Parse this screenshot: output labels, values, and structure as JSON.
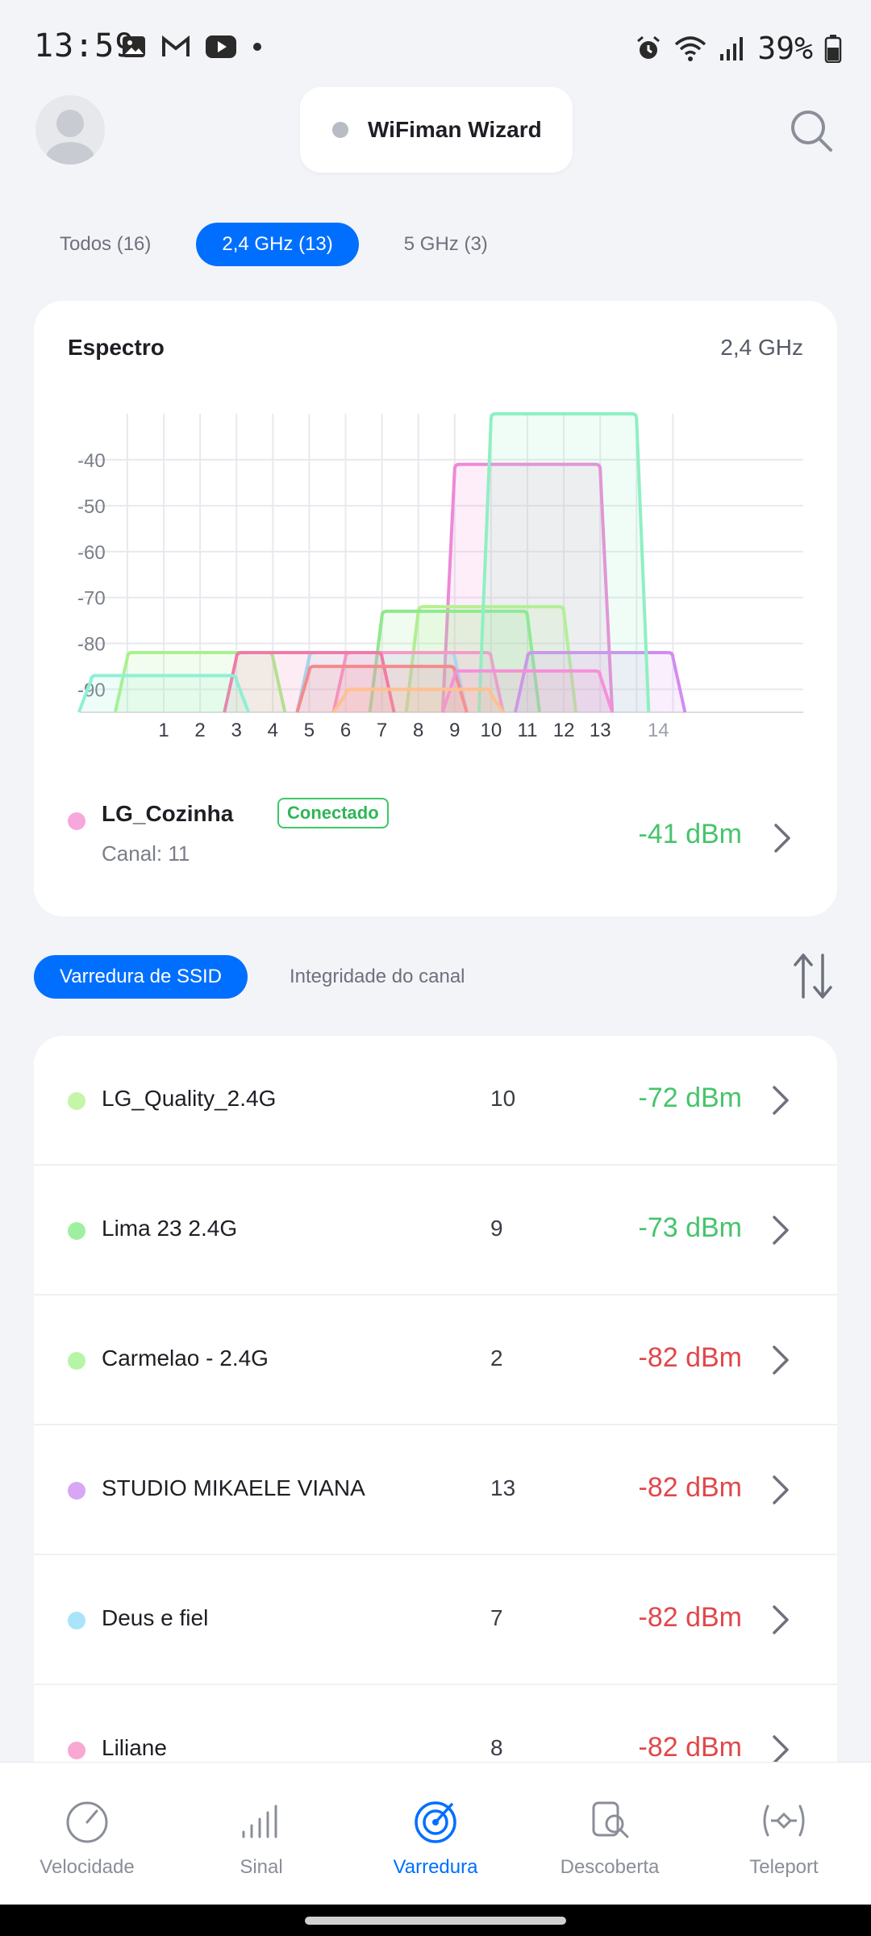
{
  "status_bar": {
    "time": "13:59",
    "battery": "39%",
    "icons_left": [
      "gallery-icon",
      "gmail-icon",
      "youtube-icon",
      "dot-icon"
    ],
    "icons_right": [
      "alarm-icon",
      "wifi-icon",
      "signal-icon",
      "battery-icon"
    ]
  },
  "header": {
    "wizard_label": "WiFiman Wizard"
  },
  "filters": [
    {
      "label": "Todos (16)",
      "active": false
    },
    {
      "label": "2,4 GHz (13)",
      "active": true
    },
    {
      "label": "5 GHz (3)",
      "active": false
    }
  ],
  "spectrum": {
    "title": "Espectro",
    "band": "2,4 GHz",
    "connected": {
      "name": "LG_Cozinha",
      "badge": "Conectado",
      "channel_label": "Canal: 11",
      "signal": "-41 dBm",
      "color": "#f6a7dd"
    }
  },
  "chart_data": {
    "type": "area",
    "title": "Espectro",
    "x_ticks": [
      "1",
      "2",
      "3",
      "4",
      "5",
      "6",
      "7",
      "8",
      "9",
      "10",
      "11",
      "12",
      "13",
      "14"
    ],
    "y_ticks": [
      "-40",
      "-50",
      "-60",
      "-70",
      "-80",
      "-90"
    ],
    "ylim": [
      -95,
      -30
    ],
    "grid": true,
    "series": [
      {
        "name": "LG_Cozinha",
        "channel": 11,
        "dbm": -41,
        "color": "#ee88d8"
      },
      {
        "name": "LG_Quality_2.4G",
        "channel": 10,
        "dbm": -72,
        "color": "#b8f090"
      },
      {
        "name": "Lima 23 2.4G",
        "channel": 9,
        "dbm": -73,
        "color": "#8ee88e"
      },
      {
        "name": "Carmelao - 2.4G",
        "channel": 2,
        "dbm": -82,
        "color": "#a8f28e"
      },
      {
        "name": "STUDIO MIKAELE VIANA",
        "channel": 13,
        "dbm": -82,
        "color": "#d28cf0"
      },
      {
        "name": "Deus e fiel",
        "channel": 7,
        "dbm": -82,
        "color": "#9ee0f8"
      },
      {
        "name": "Liliane",
        "channel": 8,
        "dbm": -82,
        "color": "#f59acb"
      },
      {
        "series_channel_note": "",
        "channel": 12,
        "dbm": -30,
        "color": "#8ef0c2"
      },
      {
        "channel": 5,
        "dbm": -82,
        "color": "#f07aa8"
      },
      {
        "channel": 1,
        "dbm": -87,
        "color": "#8ef0d6"
      },
      {
        "channel": 7,
        "dbm": -85,
        "color": "#f58a8a"
      },
      {
        "channel": 11,
        "dbm": -86,
        "color": "#f590d8"
      },
      {
        "channel": 8,
        "dbm": -90,
        "color": "#ffc090"
      }
    ]
  },
  "tabs2": [
    {
      "label": "Varredura de SSID",
      "active": true
    },
    {
      "label": "Integridade do canal",
      "active": false
    }
  ],
  "networks": [
    {
      "name": "LG_Quality_2.4G",
      "channel": "10",
      "signal": "-72 dBm",
      "dot": "#c4f5a8",
      "signal_color": "#46c46b"
    },
    {
      "name": "Lima 23 2.4G",
      "channel": "9",
      "signal": "-73 dBm",
      "dot": "#9ef0a0",
      "signal_color": "#46c46b"
    },
    {
      "name": "Carmelao - 2.4G",
      "channel": "2",
      "signal": "-82 dBm",
      "dot": "#b6f5a6",
      "signal_color": "#e0484c"
    },
    {
      "name": "STUDIO MIKAELE VIANA",
      "channel": "13",
      "signal": "-82 dBm",
      "dot": "#d8a6f4",
      "signal_color": "#e0484c"
    },
    {
      "name": "Deus e fiel",
      "channel": "7",
      "signal": "-82 dBm",
      "dot": "#a8e4fa",
      "signal_color": "#e0484c"
    },
    {
      "name": "Liliane",
      "channel": "8",
      "signal": "-82 dBm",
      "dot": "#f8a8d2",
      "signal_color": "#e0484c"
    }
  ],
  "bottom_nav": [
    {
      "label": "Velocidade",
      "icon": "speedometer-icon",
      "active": false
    },
    {
      "label": "Sinal",
      "icon": "signal-bars-icon",
      "active": false
    },
    {
      "label": "Varredura",
      "icon": "radar-icon",
      "active": true
    },
    {
      "label": "Descoberta",
      "icon": "discovery-icon",
      "active": false
    },
    {
      "label": "Teleport",
      "icon": "teleport-icon",
      "active": false
    }
  ],
  "colors": {
    "accent": "#006fff",
    "good": "#46c46b",
    "bad": "#e0484c"
  }
}
